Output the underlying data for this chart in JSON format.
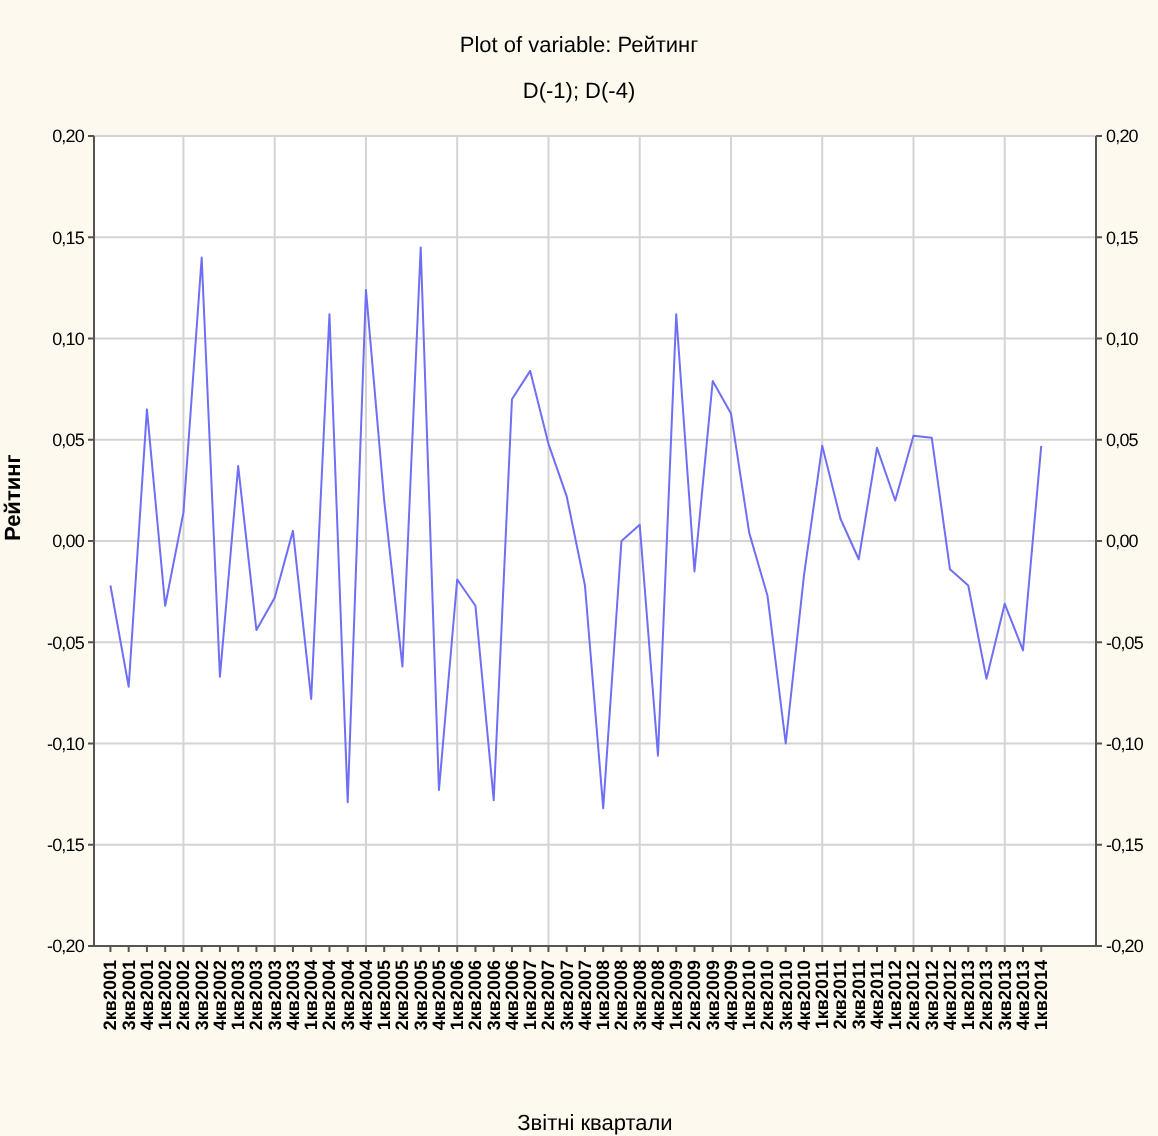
{
  "chart_data": {
    "type": "line",
    "title": "Plot of variable: Рейтинг",
    "subtitle": "D(-1); D(-4)",
    "xlabel": "Звітні квартали",
    "ylabel": "Рейтинг",
    "categories": [
      "2кв2001",
      "3кв2001",
      "4кв2001",
      "1кв2002",
      "2кв2002",
      "3кв2002",
      "4кв2002",
      "1кв2003",
      "2кв2003",
      "3кв2003",
      "4кв2003",
      "1кв2004",
      "2кв2004",
      "3кв2004",
      "4кв2004",
      "1кв2005",
      "2кв2005",
      "3кв2005",
      "4кв2005",
      "1кв2006",
      "2кв2006",
      "3кв2006",
      "4кв2006",
      "1кв2007",
      "2кв2007",
      "3кв2007",
      "4кв2007",
      "1кв2008",
      "2кв2008",
      "3кв2008",
      "4кв2008",
      "1кв2009",
      "2кв2009",
      "3кв2009",
      "4кв2009",
      "1кв2010",
      "2кв2010",
      "3кв2010",
      "4кв2010",
      "1кв2011",
      "2кв2011",
      "3кв2011",
      "4кв2011",
      "1кв2012",
      "2кв2012",
      "3кв2012",
      "4кв2012",
      "1кв2013",
      "2кв2013",
      "3кв2013",
      "4кв2013",
      "1кв2014"
    ],
    "series": [
      {
        "color": "#6f6ff5",
        "values": [
          -0.022,
          -0.072,
          0.065,
          -0.032,
          0.014,
          0.14,
          -0.067,
          0.037,
          -0.044,
          -0.028,
          0.005,
          -0.078,
          0.112,
          -0.129,
          0.124,
          0.02,
          -0.062,
          0.145,
          -0.123,
          -0.019,
          -0.032,
          -0.128,
          0.07,
          0.084,
          0.048,
          0.022,
          -0.022,
          -0.132,
          0.0,
          0.008,
          -0.106,
          0.112,
          -0.015,
          0.079,
          0.063,
          0.004,
          -0.027,
          -0.1,
          -0.017,
          0.047,
          0.011,
          -0.009,
          0.046,
          0.02,
          0.052,
          0.051,
          -0.014,
          -0.022,
          -0.068,
          -0.031,
          -0.054,
          0.047
        ]
      }
    ],
    "ylim": [
      -0.2,
      0.2
    ],
    "yticks": [
      {
        "value": -0.2,
        "label": "-0,20"
      },
      {
        "value": -0.15,
        "label": "-0,15"
      },
      {
        "value": -0.1,
        "label": "-0,10"
      },
      {
        "value": -0.05,
        "label": "-0,05"
      },
      {
        "value": 0,
        "label": "0,00"
      },
      {
        "value": 0.05,
        "label": "0,05"
      },
      {
        "value": 0.1,
        "label": "0,10"
      },
      {
        "value": 0.15,
        "label": "0,15"
      },
      {
        "value": 0.2,
        "label": "0,20"
      }
    ],
    "y2lim": [
      -0.2,
      0.2
    ],
    "y2ticks": [
      {
        "value": -0.2,
        "label": "-0,20"
      },
      {
        "value": -0.15,
        "label": "-0,15"
      },
      {
        "value": -0.1,
        "label": "-0,10"
      },
      {
        "value": -0.05,
        "label": "-0,05"
      },
      {
        "value": 0,
        "label": "0,00"
      },
      {
        "value": 0.05,
        "label": "0,05"
      },
      {
        "value": 0.1,
        "label": "0,10"
      },
      {
        "value": 0.15,
        "label": "0,15"
      },
      {
        "value": 0.2,
        "label": "0,20"
      }
    ],
    "grid": true,
    "marker": "none",
    "line_style": "solid",
    "legend": false
  }
}
